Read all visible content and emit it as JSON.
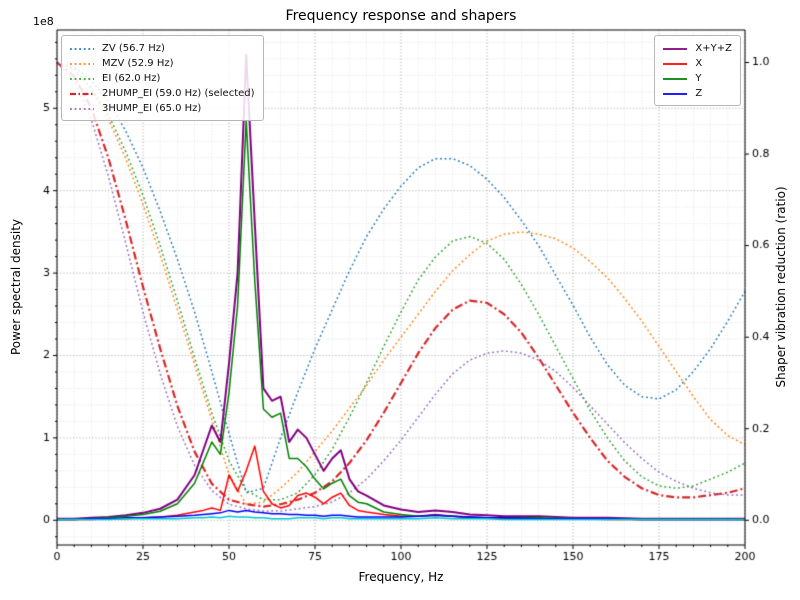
{
  "title": "Frequency response and shapers",
  "axes": {
    "x": {
      "label": "Frequency, Hz",
      "min": 0,
      "max": 200,
      "major_ticks": [
        0,
        25,
        50,
        75,
        100,
        125,
        150,
        175,
        200
      ],
      "minor_step": 5
    },
    "y_left": {
      "label": "Power spectral density",
      "offset_text": "1e8",
      "min": -0.3,
      "max": 5.95,
      "major_ticks": [
        0,
        1,
        2,
        3,
        4,
        5
      ],
      "minor_step": 0.2,
      "units": "1e8"
    },
    "y_right": {
      "label": "Shaper vibration reduction (ratio)",
      "min": -0.054,
      "max": 1.071,
      "major_ticks": [
        "0.0",
        "0.2",
        "0.4",
        "0.6",
        "0.8",
        "1.0"
      ]
    }
  },
  "chart_data": {
    "type": "line",
    "title": "Frequency response and shapers",
    "xlabel": "Frequency, Hz",
    "ylabel_left": "Power spectral density",
    "ylabel_right": "Shaper vibration reduction (ratio)",
    "x_range": [
      0,
      200
    ],
    "grid": "major+minor",
    "psd_units": "1e8",
    "psd_x": [
      0,
      5,
      10,
      15,
      20,
      25,
      30,
      35,
      40,
      42.5,
      45,
      47.5,
      50,
      52.5,
      55,
      57.5,
      60,
      62.5,
      65,
      67.5,
      70,
      72.5,
      75,
      77.5,
      80,
      82.5,
      85,
      87.5,
      90,
      95,
      100,
      105,
      110,
      115,
      120,
      125,
      130,
      140,
      150,
      160,
      170,
      180,
      190,
      200
    ],
    "psd_series": [
      {
        "name": "X+Y+Z",
        "color": "#800080",
        "style": "solid",
        "lw": 2,
        "y": [
          0.02,
          0.02,
          0.03,
          0.04,
          0.06,
          0.09,
          0.14,
          0.25,
          0.55,
          0.85,
          1.15,
          0.95,
          1.9,
          3.0,
          5.65,
          3.6,
          1.6,
          1.45,
          1.5,
          0.95,
          1.1,
          1.0,
          0.8,
          0.6,
          0.75,
          0.85,
          0.5,
          0.35,
          0.3,
          0.18,
          0.13,
          0.1,
          0.12,
          0.1,
          0.07,
          0.06,
          0.05,
          0.05,
          0.03,
          0.03,
          0.02,
          0.02,
          0.02,
          0.02
        ]
      },
      {
        "name": "X",
        "color": "#ff0000",
        "style": "solid",
        "lw": 1.5,
        "y": [
          0.01,
          0.01,
          0.01,
          0.02,
          0.02,
          0.03,
          0.04,
          0.06,
          0.1,
          0.12,
          0.15,
          0.12,
          0.55,
          0.35,
          0.6,
          0.9,
          0.35,
          0.2,
          0.15,
          0.18,
          0.3,
          0.33,
          0.28,
          0.2,
          0.28,
          0.33,
          0.18,
          0.12,
          0.1,
          0.07,
          0.05,
          0.05,
          0.07,
          0.05,
          0.03,
          0.03,
          0.02,
          0.02,
          0.02,
          0.01,
          0.01,
          0.01,
          0.01,
          0.01
        ]
      },
      {
        "name": "Y",
        "color": "#008000",
        "style": "solid",
        "lw": 1.5,
        "y": [
          0.01,
          0.01,
          0.02,
          0.03,
          0.05,
          0.07,
          0.11,
          0.2,
          0.45,
          0.7,
          0.95,
          0.8,
          1.55,
          2.6,
          4.85,
          2.9,
          1.35,
          1.25,
          1.3,
          0.75,
          0.75,
          0.65,
          0.5,
          0.38,
          0.45,
          0.5,
          0.3,
          0.22,
          0.2,
          0.1,
          0.07,
          0.05,
          0.06,
          0.05,
          0.04,
          0.03,
          0.03,
          0.03,
          0.02,
          0.02,
          0.01,
          0.01,
          0.01,
          0.01
        ]
      },
      {
        "name": "Z",
        "color": "#0000ff",
        "style": "solid",
        "lw": 1.5,
        "y": [
          0.01,
          0.01,
          0.02,
          0.02,
          0.03,
          0.03,
          0.04,
          0.05,
          0.06,
          0.07,
          0.08,
          0.09,
          0.12,
          0.1,
          0.12,
          0.1,
          0.09,
          0.08,
          0.08,
          0.07,
          0.07,
          0.06,
          0.06,
          0.05,
          0.06,
          0.06,
          0.05,
          0.04,
          0.04,
          0.04,
          0.04,
          0.05,
          0.06,
          0.05,
          0.04,
          0.03,
          0.03,
          0.02,
          0.02,
          0.02,
          0.01,
          0.01,
          0.01,
          0.01
        ]
      },
      {
        "name": "after_shaper",
        "color": "#00c8d4",
        "style": "solid",
        "lw": 1.5,
        "y": [
          0.01,
          0.01,
          0.01,
          0.01,
          0.02,
          0.02,
          0.02,
          0.02,
          0.03,
          0.03,
          0.04,
          0.03,
          0.05,
          0.04,
          0.04,
          0.03,
          0.03,
          0.02,
          0.02,
          0.02,
          0.03,
          0.03,
          0.03,
          0.02,
          0.03,
          0.03,
          0.02,
          0.02,
          0.02,
          0.02,
          0.02,
          0.02,
          0.03,
          0.02,
          0.02,
          0.02,
          0.01,
          0.01,
          0.01,
          0.01,
          0.01,
          0.01,
          0.01,
          0.01
        ]
      }
    ],
    "shaper_x0": 0,
    "shaper_dx": 5,
    "shaper_series": [
      {
        "name": "ZV",
        "freq_hz": 56.7,
        "label": "ZV (56.7 Hz)",
        "selected": false,
        "color": "#1f77b4",
        "style": "dotted",
        "lw": 1.5,
        "y": [
          1.0,
          0.99,
          0.96,
          0.915,
          0.85,
          0.77,
          0.675,
          0.57,
          0.455,
          0.325,
          0.19,
          0.06,
          0.07,
          0.18,
          0.28,
          0.375,
          0.46,
          0.545,
          0.62,
          0.68,
          0.73,
          0.77,
          0.79,
          0.79,
          0.775,
          0.745,
          0.705,
          0.655,
          0.6,
          0.535,
          0.47,
          0.4,
          0.34,
          0.295,
          0.27,
          0.265,
          0.285,
          0.325,
          0.375,
          0.435,
          0.5
        ]
      },
      {
        "name": "MZV",
        "freq_hz": 52.9,
        "label": "MZV (52.9 Hz)",
        "selected": false,
        "color": "#ff7f0e",
        "style": "dotted",
        "lw": 1.5,
        "y": [
          1.0,
          0.985,
          0.94,
          0.875,
          0.79,
          0.69,
          0.58,
          0.46,
          0.34,
          0.22,
          0.1,
          0.035,
          0.04,
          0.07,
          0.105,
          0.15,
          0.195,
          0.245,
          0.295,
          0.35,
          0.4,
          0.45,
          0.5,
          0.545,
          0.58,
          0.61,
          0.625,
          0.63,
          0.625,
          0.615,
          0.595,
          0.565,
          0.53,
          0.485,
          0.435,
          0.38,
          0.325,
          0.27,
          0.22,
          0.185,
          0.165
        ]
      },
      {
        "name": "EI",
        "freq_hz": 62.0,
        "label": "EI (62.0 Hz)",
        "selected": false,
        "color": "#2ca02c",
        "style": "dotted",
        "lw": 1.5,
        "y": [
          1.0,
          0.985,
          0.945,
          0.885,
          0.805,
          0.71,
          0.6,
          0.48,
          0.355,
          0.235,
          0.13,
          0.065,
          0.045,
          0.045,
          0.06,
          0.1,
          0.155,
          0.225,
          0.3,
          0.38,
          0.455,
          0.525,
          0.575,
          0.61,
          0.62,
          0.605,
          0.57,
          0.515,
          0.45,
          0.38,
          0.31,
          0.24,
          0.18,
          0.13,
          0.095,
          0.075,
          0.07,
          0.075,
          0.09,
          0.105,
          0.125
        ]
      },
      {
        "name": "2HUMP_EI",
        "freq_hz": 59.0,
        "label": "2HUMP_EI (59.0 Hz) (selected)",
        "selected": true,
        "color": "#d62728",
        "style": "dashdot",
        "lw": 2.2,
        "y": [
          1.0,
          0.97,
          0.9,
          0.79,
          0.655,
          0.51,
          0.375,
          0.25,
          0.15,
          0.08,
          0.045,
          0.035,
          0.03,
          0.035,
          0.045,
          0.06,
          0.085,
          0.125,
          0.175,
          0.235,
          0.3,
          0.365,
          0.42,
          0.46,
          0.48,
          0.475,
          0.45,
          0.41,
          0.355,
          0.295,
          0.235,
          0.18,
          0.13,
          0.095,
          0.07,
          0.055,
          0.05,
          0.05,
          0.055,
          0.06,
          0.07
        ]
      },
      {
        "name": "3HUMP_EI",
        "freq_hz": 65.0,
        "label": "3HUMP_EI (65.0 Hz)",
        "selected": false,
        "color": "#9467bd",
        "style": "dotted",
        "lw": 1.5,
        "y": [
          1.0,
          0.96,
          0.875,
          0.75,
          0.605,
          0.455,
          0.32,
          0.205,
          0.12,
          0.065,
          0.035,
          0.025,
          0.02,
          0.02,
          0.025,
          0.03,
          0.04,
          0.06,
          0.09,
          0.13,
          0.175,
          0.225,
          0.275,
          0.32,
          0.35,
          0.365,
          0.37,
          0.365,
          0.35,
          0.325,
          0.29,
          0.25,
          0.21,
          0.17,
          0.135,
          0.105,
          0.085,
          0.07,
          0.06,
          0.055,
          0.055
        ]
      }
    ]
  },
  "legend_left": {
    "items": [
      {
        "label": "ZV (56.7 Hz)",
        "color": "#1f77b4",
        "style": "dotted"
      },
      {
        "label": "MZV (52.9 Hz)",
        "color": "#ff7f0e",
        "style": "dotted"
      },
      {
        "label": "EI (62.0 Hz)",
        "color": "#2ca02c",
        "style": "dotted"
      },
      {
        "label": "2HUMP_EI (59.0 Hz) (selected)",
        "color": "#d62728",
        "style": "dashdot"
      },
      {
        "label": "3HUMP_EI (65.0 Hz)",
        "color": "#9467bd",
        "style": "dotted"
      }
    ]
  },
  "legend_right": {
    "items": [
      {
        "label": "X+Y+Z",
        "color": "#800080",
        "style": "solid"
      },
      {
        "label": "X",
        "color": "#ff0000",
        "style": "solid"
      },
      {
        "label": "Y",
        "color": "#008000",
        "style": "solid"
      },
      {
        "label": "Z",
        "color": "#0000ff",
        "style": "solid"
      }
    ]
  }
}
